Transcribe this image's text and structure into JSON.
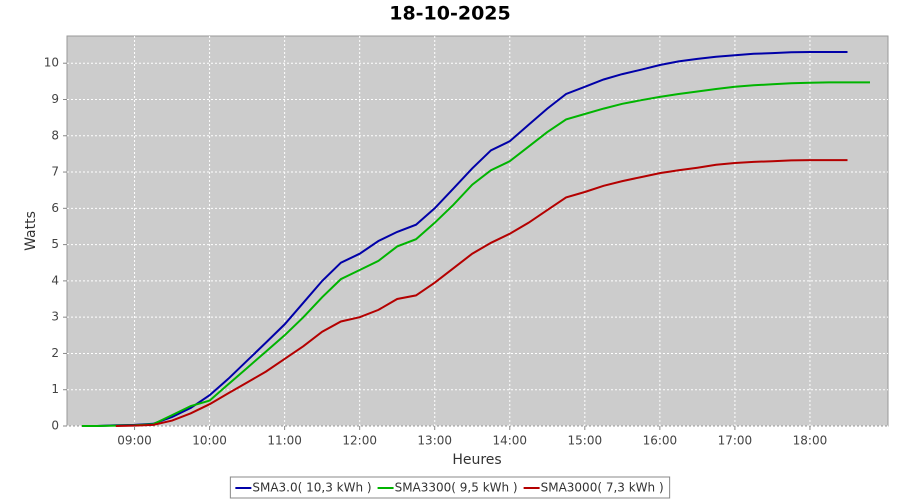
{
  "chart_data": {
    "type": "line",
    "title": "18-10-2025",
    "x_label": "Heures",
    "y_label": "Watts",
    "x": [
      8.3,
      8.5,
      8.75,
      9.0,
      9.25,
      9.5,
      9.75,
      10.0,
      10.25,
      10.5,
      10.75,
      11.0,
      11.25,
      11.5,
      11.75,
      12.0,
      12.25,
      12.5,
      12.75,
      13.0,
      13.25,
      13.5,
      13.75,
      14.0,
      14.25,
      14.5,
      14.75,
      15.0,
      15.25,
      15.5,
      15.75,
      16.0,
      16.25,
      16.5,
      16.75,
      17.0,
      17.25,
      17.5,
      17.75,
      18.0,
      18.25,
      18.5,
      18.8
    ],
    "series": [
      {
        "name": "SMA3.0( 10,3 kWh )",
        "color": "#0000a8",
        "values": [
          0,
          0,
          0.02,
          0.03,
          0.06,
          0.25,
          0.5,
          0.85,
          1.3,
          1.8,
          2.3,
          2.8,
          3.4,
          4.0,
          4.5,
          4.75,
          5.1,
          5.35,
          5.55,
          6.0,
          6.55,
          7.1,
          7.6,
          7.85,
          8.3,
          8.75,
          9.15,
          9.35,
          9.55,
          9.7,
          9.82,
          9.95,
          10.05,
          10.12,
          10.18,
          10.22,
          10.26,
          10.28,
          10.3,
          10.31,
          10.31,
          10.31,
          null
        ]
      },
      {
        "name": "SMA3300( 9,5 kWh )",
        "color": "#00b400",
        "values": [
          0,
          0,
          0.01,
          0.02,
          0.05,
          0.3,
          0.55,
          0.7,
          1.15,
          1.6,
          2.05,
          2.5,
          3.0,
          3.55,
          4.05,
          4.3,
          4.55,
          4.95,
          5.15,
          5.6,
          6.1,
          6.65,
          7.05,
          7.3,
          7.7,
          8.1,
          8.45,
          8.6,
          8.75,
          8.88,
          8.98,
          9.07,
          9.15,
          9.22,
          9.29,
          9.35,
          9.39,
          9.42,
          9.45,
          9.46,
          9.47,
          9.47,
          9.47
        ]
      },
      {
        "name": "SMA3000( 7,3 kWh )",
        "color": "#b40000",
        "values": [
          null,
          null,
          0.0,
          0.01,
          0.03,
          0.15,
          0.35,
          0.6,
          0.9,
          1.2,
          1.5,
          1.85,
          2.2,
          2.6,
          2.88,
          3.0,
          3.2,
          3.5,
          3.6,
          3.95,
          4.35,
          4.75,
          5.05,
          5.3,
          5.6,
          5.95,
          6.3,
          6.45,
          6.62,
          6.75,
          6.86,
          6.97,
          7.05,
          7.12,
          7.2,
          7.25,
          7.28,
          7.3,
          7.32,
          7.33,
          7.33,
          7.33,
          null
        ]
      }
    ],
    "xlim": [
      8.1,
      19.04
    ],
    "xticks": [
      {
        "value": 9,
        "label": "09:00"
      },
      {
        "value": 10,
        "label": "10:00"
      },
      {
        "value": 11,
        "label": "11:00"
      },
      {
        "value": 12,
        "label": "12:00"
      },
      {
        "value": 13,
        "label": "13:00"
      },
      {
        "value": 14,
        "label": "14:00"
      },
      {
        "value": 15,
        "label": "15:00"
      },
      {
        "value": 16,
        "label": "16:00"
      },
      {
        "value": 17,
        "label": "17:00"
      },
      {
        "value": 18,
        "label": "18:00"
      }
    ],
    "ylim": [
      0,
      10.75
    ],
    "yticks": [
      0,
      1,
      2,
      3,
      4,
      5,
      6,
      7,
      8,
      9,
      10
    ],
    "grid": true,
    "legend": "bottom"
  }
}
